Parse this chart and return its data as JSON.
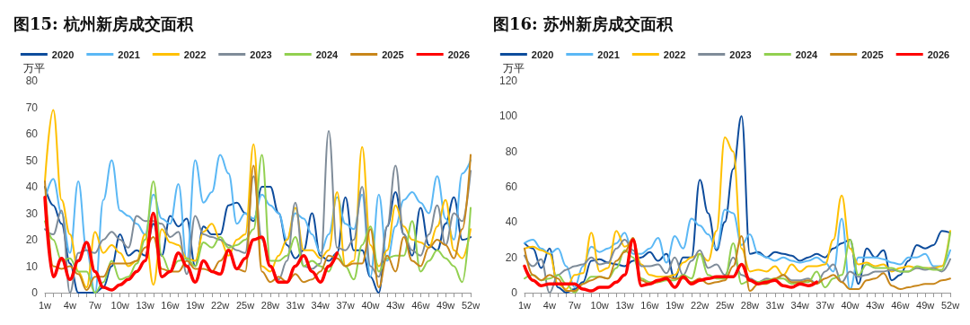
{
  "chart_data": [
    {
      "type": "line",
      "title": "图15: 杭州新房成交面积",
      "ylabel": "万平",
      "categories": [
        "1w",
        null,
        null,
        "4w",
        null,
        null,
        "7w",
        null,
        null,
        "10w",
        null,
        null,
        "13w",
        null,
        null,
        "16w",
        null,
        null,
        "19w",
        null,
        null,
        "22w",
        null,
        null,
        "25w",
        null,
        null,
        "28w",
        null,
        null,
        "31w",
        null,
        null,
        "34w",
        null,
        null,
        "37w",
        null,
        null,
        "40w",
        null,
        null,
        "43w",
        null,
        null,
        "46w",
        null,
        null,
        "49w",
        null,
        null,
        "52w"
      ],
      "ylim": [
        0,
        80
      ],
      "yticks": [
        0,
        10,
        20,
        30,
        40,
        50,
        60,
        70,
        80
      ],
      "grid": false,
      "legend": "top",
      "marker": "none",
      "line_style": "solid",
      "series": [
        {
          "name": "2020",
          "color": "#0d4c9c",
          "values": [
            40,
            33,
            26,
            11,
            0,
            0,
            0,
            2,
            10,
            22,
            14,
            16,
            14,
            26,
            14,
            29,
            25,
            28,
            10,
            25,
            22,
            22,
            33,
            34,
            30,
            27,
            40,
            40,
            30,
            18,
            13,
            16,
            30,
            14,
            12,
            15,
            36,
            16,
            16,
            6,
            0,
            25,
            38,
            22,
            14,
            32,
            18,
            16,
            26,
            36,
            20,
            21
          ]
        },
        {
          "name": "2021",
          "color": "#5bb8f5",
          "values": [
            35,
            43,
            30,
            15,
            42,
            16,
            0,
            35,
            50,
            31,
            29,
            26,
            22,
            37,
            28,
            26,
            41,
            12,
            50,
            34,
            38,
            52,
            45,
            26,
            30,
            28,
            37,
            33,
            30,
            20,
            30,
            28,
            22,
            15,
            22,
            36,
            26,
            24,
            37,
            6,
            37,
            12,
            25,
            35,
            38,
            34,
            30,
            44,
            28,
            20,
            45,
            50
          ]
        },
        {
          "name": "2022",
          "color": "#ffc000",
          "values": [
            42,
            69,
            35,
            22,
            8,
            2,
            23,
            15,
            18,
            15,
            10,
            12,
            22,
            3,
            24,
            19,
            18,
            13,
            12,
            23,
            26,
            20,
            14,
            20,
            22,
            56,
            10,
            8,
            14,
            20,
            32,
            16,
            16,
            13,
            16,
            38,
            10,
            12,
            55,
            18,
            10,
            16,
            33,
            25,
            20,
            19,
            17,
            25,
            35,
            16,
            13,
            24
          ]
        },
        {
          "name": "2023",
          "color": "#7f8c99",
          "values": [
            24,
            22,
            31,
            0,
            15,
            16,
            15,
            20,
            23,
            20,
            17,
            29,
            27,
            27,
            26,
            21,
            23,
            7,
            29,
            22,
            21,
            20,
            18,
            16,
            15,
            44,
            20,
            10,
            5,
            12,
            34,
            10,
            9,
            11,
            61,
            17,
            16,
            20,
            40,
            10,
            6,
            25,
            48,
            22,
            16,
            14,
            22,
            33,
            18,
            30,
            27,
            46
          ]
        },
        {
          "name": "2024",
          "color": "#92d050",
          "values": [
            27,
            20,
            12,
            13,
            8,
            8,
            0,
            4,
            12,
            5,
            6,
            11,
            20,
            42,
            14,
            8,
            12,
            13,
            10,
            19,
            17,
            21,
            17,
            18,
            20,
            24,
            52,
            12,
            12,
            14,
            21,
            10,
            12,
            10,
            8,
            15,
            10,
            5,
            18,
            25,
            8,
            13,
            14,
            14,
            27,
            8,
            12,
            16,
            13,
            10,
            4,
            32
          ]
        },
        {
          "name": "2025",
          "color": "#c8861a",
          "values": [
            42,
            10,
            9,
            10,
            7,
            1,
            6,
            6,
            11,
            11,
            11,
            12,
            17,
            21,
            9,
            8,
            8,
            12,
            9,
            9,
            8,
            12,
            16,
            9,
            8,
            48,
            8,
            4,
            6,
            4,
            7,
            4,
            5,
            8,
            14,
            13,
            10,
            11,
            11,
            24,
            2,
            14,
            8,
            21,
            12,
            10,
            17,
            20,
            18,
            13,
            24,
            52
          ]
        },
        {
          "name": "2026",
          "color": "#ff0000",
          "values": [
            36,
            6,
            13,
            5,
            12,
            19,
            8,
            2,
            1,
            3,
            5,
            8,
            12,
            30,
            6,
            8,
            15,
            10,
            4,
            12,
            8,
            7,
            16,
            9,
            13,
            20,
            21,
            10,
            4,
            4,
            10,
            14,
            8,
            4,
            10,
            15,
            null,
            null,
            null,
            null,
            null,
            null,
            null,
            null,
            null,
            null,
            null,
            null,
            null,
            null,
            null,
            null
          ]
        }
      ]
    },
    {
      "type": "line",
      "title": "图16: 苏州新房成交面积",
      "ylabel": "万平",
      "categories": [
        "1w",
        null,
        null,
        "4w",
        null,
        null,
        "7w",
        null,
        null,
        "10w",
        null,
        null,
        "13w",
        null,
        null,
        "16w",
        null,
        null,
        "19w",
        null,
        null,
        "22w",
        null,
        null,
        "25w",
        null,
        null,
        "28w",
        null,
        null,
        "31w",
        null,
        null,
        "34w",
        null,
        null,
        "37w",
        null,
        null,
        "40w",
        null,
        null,
        "43w",
        null,
        null,
        "46w",
        null,
        null,
        "49w",
        null,
        null,
        "52w"
      ],
      "ylim": [
        0,
        120
      ],
      "yticks": [
        0,
        20,
        40,
        60,
        80,
        100,
        120
      ],
      "grid": false,
      "legend": "top",
      "marker": "none",
      "line_style": "solid",
      "series": [
        {
          "name": "2020",
          "color": "#0d4c9c",
          "values": [
            28,
            25,
            14,
            25,
            3,
            0,
            2,
            6,
            18,
            19,
            17,
            16,
            15,
            18,
            20,
            23,
            18,
            22,
            8,
            20,
            20,
            64,
            45,
            24,
            40,
            70,
            100,
            22,
            23,
            20,
            23,
            22,
            21,
            18,
            20,
            22,
            20,
            25,
            28,
            30,
            5,
            25,
            20,
            24,
            7,
            10,
            18,
            27,
            25,
            27,
            35,
            34
          ]
        },
        {
          "name": "2021",
          "color": "#5bb8f5",
          "values": [
            28,
            30,
            25,
            22,
            25,
            15,
            3,
            15,
            26,
            23,
            25,
            28,
            34,
            22,
            22,
            25,
            31,
            17,
            32,
            25,
            42,
            38,
            33,
            25,
            47,
            45,
            27,
            33,
            22,
            20,
            18,
            20,
            18,
            17,
            18,
            20,
            17,
            12,
            42,
            2,
            20,
            20,
            20,
            19,
            17,
            16,
            20,
            20,
            22,
            15,
            15,
            24
          ]
        },
        {
          "name": "2022",
          "color": "#ffc000",
          "values": [
            25,
            26,
            24,
            22,
            5,
            2,
            10,
            11,
            34,
            12,
            14,
            35,
            26,
            29,
            16,
            10,
            9,
            9,
            10,
            17,
            20,
            22,
            18,
            35,
            88,
            80,
            25,
            12,
            13,
            12,
            15,
            10,
            16,
            12,
            15,
            15,
            16,
            30,
            55,
            25,
            16,
            17,
            15,
            16,
            12,
            14,
            15,
            14,
            14,
            14,
            15,
            35
          ]
        },
        {
          "name": "2023",
          "color": "#7f8c99",
          "values": [
            21,
            15,
            19,
            0,
            10,
            13,
            15,
            16,
            20,
            16,
            17,
            25,
            30,
            24,
            15,
            15,
            16,
            11,
            20,
            10,
            18,
            24,
            14,
            16,
            10,
            20,
            10,
            8,
            6,
            8,
            7,
            10,
            7,
            7,
            8,
            5,
            12,
            16,
            6,
            12,
            9,
            10,
            12,
            12,
            13,
            12,
            12,
            14,
            13,
            14,
            12,
            19
          ]
        },
        {
          "name": "2024",
          "color": "#92d050",
          "values": [
            8,
            10,
            7,
            8,
            10,
            5,
            0,
            5,
            9,
            9,
            8,
            14,
            24,
            20,
            8,
            6,
            6,
            7,
            7,
            10,
            8,
            22,
            10,
            8,
            8,
            28,
            5,
            7,
            6,
            7,
            8,
            8,
            5,
            6,
            6,
            12,
            3,
            8,
            10,
            30,
            10,
            16,
            14,
            14,
            14,
            12,
            12,
            15,
            14,
            13,
            13,
            34
          ]
        },
        {
          "name": "2025",
          "color": "#c8861a",
          "values": [
            25,
            10,
            7,
            10,
            8,
            1,
            1,
            5,
            7,
            9,
            8,
            18,
            23,
            31,
            7,
            5,
            6,
            9,
            8,
            8,
            6,
            8,
            5,
            6,
            7,
            15,
            32,
            1,
            5,
            5,
            8,
            10,
            6,
            6,
            7,
            5,
            8,
            10,
            6,
            2,
            2,
            7,
            8,
            11,
            4,
            2,
            3,
            4,
            5,
            5,
            7,
            8
          ]
        },
        {
          "name": "2026",
          "color": "#ff0000",
          "values": [
            15,
            7,
            4,
            5,
            5,
            5,
            5,
            2,
            1,
            3,
            3,
            6,
            10,
            30,
            4,
            5,
            7,
            8,
            3,
            9,
            5,
            7,
            8,
            9,
            9,
            9,
            16,
            7,
            5,
            6,
            7,
            4,
            3,
            5,
            4,
            6,
            null,
            null,
            null,
            null,
            null,
            null,
            null,
            null,
            null,
            null,
            null,
            null,
            null,
            null,
            null,
            null
          ]
        }
      ]
    }
  ]
}
